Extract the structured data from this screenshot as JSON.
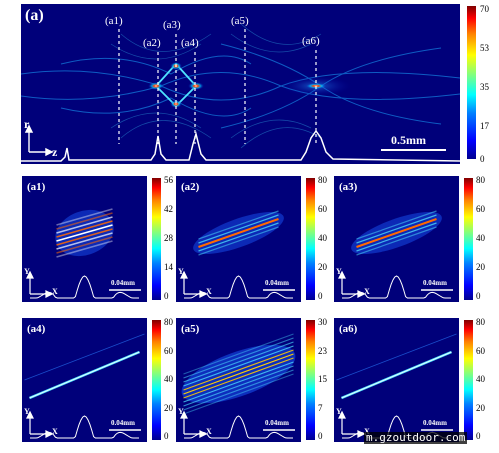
{
  "figure": {
    "main": {
      "label": "(a)",
      "slice_labels": [
        "(a1)",
        "(a2)",
        "(a3)",
        "(a4)",
        "(a5)",
        "(a6)"
      ],
      "axis_r": "r",
      "axis_z": "z",
      "scale_bar": "0.5mm",
      "colorbar_ticks": [
        "70",
        "53",
        "35",
        "17",
        "0"
      ]
    },
    "subpanels": [
      {
        "label": "(a1)",
        "scale_bar": "0.04mm",
        "axis_y": "Y",
        "axis_x": "X",
        "colorbar_ticks": [
          "56",
          "42",
          "28",
          "14",
          "0"
        ]
      },
      {
        "label": "(a2)",
        "scale_bar": "0.04mm",
        "axis_y": "Y",
        "axis_x": "X",
        "colorbar_ticks": [
          "80",
          "60",
          "40",
          "20",
          "0"
        ]
      },
      {
        "label": "(a3)",
        "scale_bar": "0.04mm",
        "axis_y": "Y",
        "axis_x": "X",
        "colorbar_ticks": [
          "80",
          "60",
          "40",
          "20",
          "0"
        ]
      },
      {
        "label": "(a4)",
        "scale_bar": "0.04mm",
        "axis_y": "Y",
        "axis_x": "X",
        "colorbar_ticks": [
          "80",
          "60",
          "40",
          "20",
          "0"
        ]
      },
      {
        "label": "(a5)",
        "scale_bar": "0.04mm",
        "axis_y": "Y",
        "axis_x": "X",
        "colorbar_ticks": [
          "30",
          "23",
          "15",
          "7",
          "0"
        ]
      },
      {
        "label": "(a6)",
        "scale_bar": "0.04mm",
        "axis_y": "Y",
        "axis_x": "X",
        "colorbar_ticks": [
          "80",
          "60",
          "40",
          "20",
          "0"
        ]
      }
    ],
    "watermark": "m.gzoutdoor.com"
  },
  "colors": {
    "background": "#00007a",
    "cyan": "#4fe3ff",
    "hot": "#ff3300"
  }
}
